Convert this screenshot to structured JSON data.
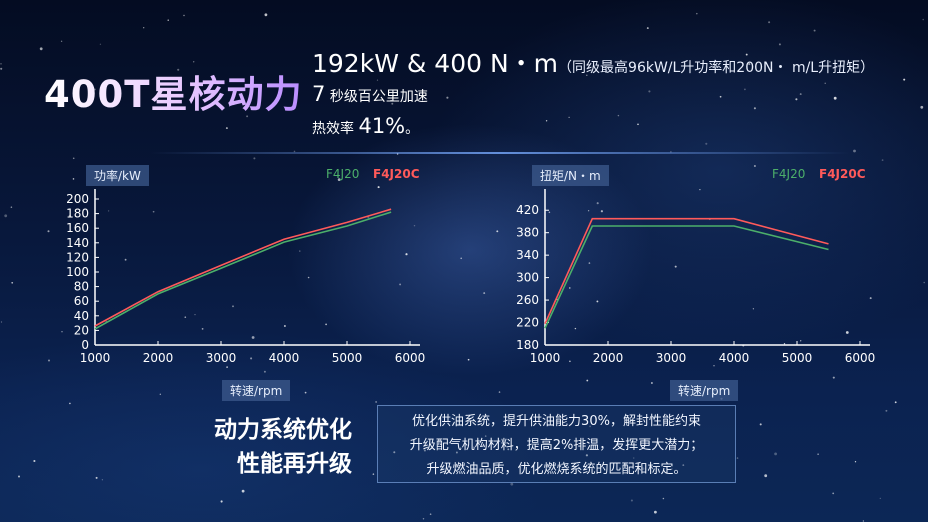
{
  "title": "400T星核动力",
  "specs": {
    "line1_main": "192kW & 400 N・m",
    "line1_note": "（同级最高96kW/L升功率和200N・ m/L升扭矩）",
    "line2_num": "7",
    "line2_text": " 秒级百公里加速",
    "line3_text": "热效率 ",
    "line3_num": "41%",
    "line3_end": "。"
  },
  "subtitle": {
    "line1": "动力系统优化",
    "line2": "性能再升级"
  },
  "description": [
    "优化供油系统，提升供油能力30%，解封性能约束",
    "升级配气机构材料，提高2%排温，发挥更大潜力；",
    "升级燃油品质，优化燃烧系统的匹配和标定。"
  ],
  "colors": {
    "f4j20": "#4caf6a",
    "f4j20c": "#ff5a5a",
    "axis": "#ffffff"
  },
  "chart_data": [
    {
      "type": "line",
      "ylabel": "功率/kW",
      "xlabel": "转速/rpm",
      "xlim": [
        1000,
        6000
      ],
      "ylim": [
        0,
        200
      ],
      "xticks": [
        1000,
        2000,
        3000,
        4000,
        5000,
        6000
      ],
      "yticks": [
        0,
        20,
        40,
        60,
        80,
        100,
        120,
        140,
        160,
        180,
        200
      ],
      "series": [
        {
          "name": "F4J20",
          "color": "#4caf6a",
          "x": [
            1000,
            2000,
            3000,
            4000,
            5000,
            5700
          ],
          "y": [
            22,
            70,
            105,
            141,
            163,
            182
          ]
        },
        {
          "name": "F4J20C",
          "color": "#ff5a5a",
          "x": [
            1000,
            2000,
            3000,
            4000,
            5000,
            5700
          ],
          "y": [
            26,
            73,
            109,
            145,
            168,
            186
          ]
        }
      ]
    },
    {
      "type": "line",
      "ylabel": "扭矩/N・m",
      "xlabel": "转速/rpm",
      "xlim": [
        1000,
        6000
      ],
      "ylim": [
        180,
        440
      ],
      "xticks": [
        1000,
        2000,
        3000,
        4000,
        5000,
        6000
      ],
      "yticks": [
        180,
        220,
        260,
        300,
        340,
        380,
        420
      ],
      "series": [
        {
          "name": "F4J20",
          "color": "#4caf6a",
          "x": [
            1000,
            1750,
            4000,
            5500
          ],
          "y": [
            210,
            392,
            392,
            350
          ]
        },
        {
          "name": "F4J20C",
          "color": "#ff5a5a",
          "x": [
            1000,
            1750,
            4000,
            5500
          ],
          "y": [
            218,
            405,
            405,
            360
          ]
        }
      ]
    }
  ]
}
